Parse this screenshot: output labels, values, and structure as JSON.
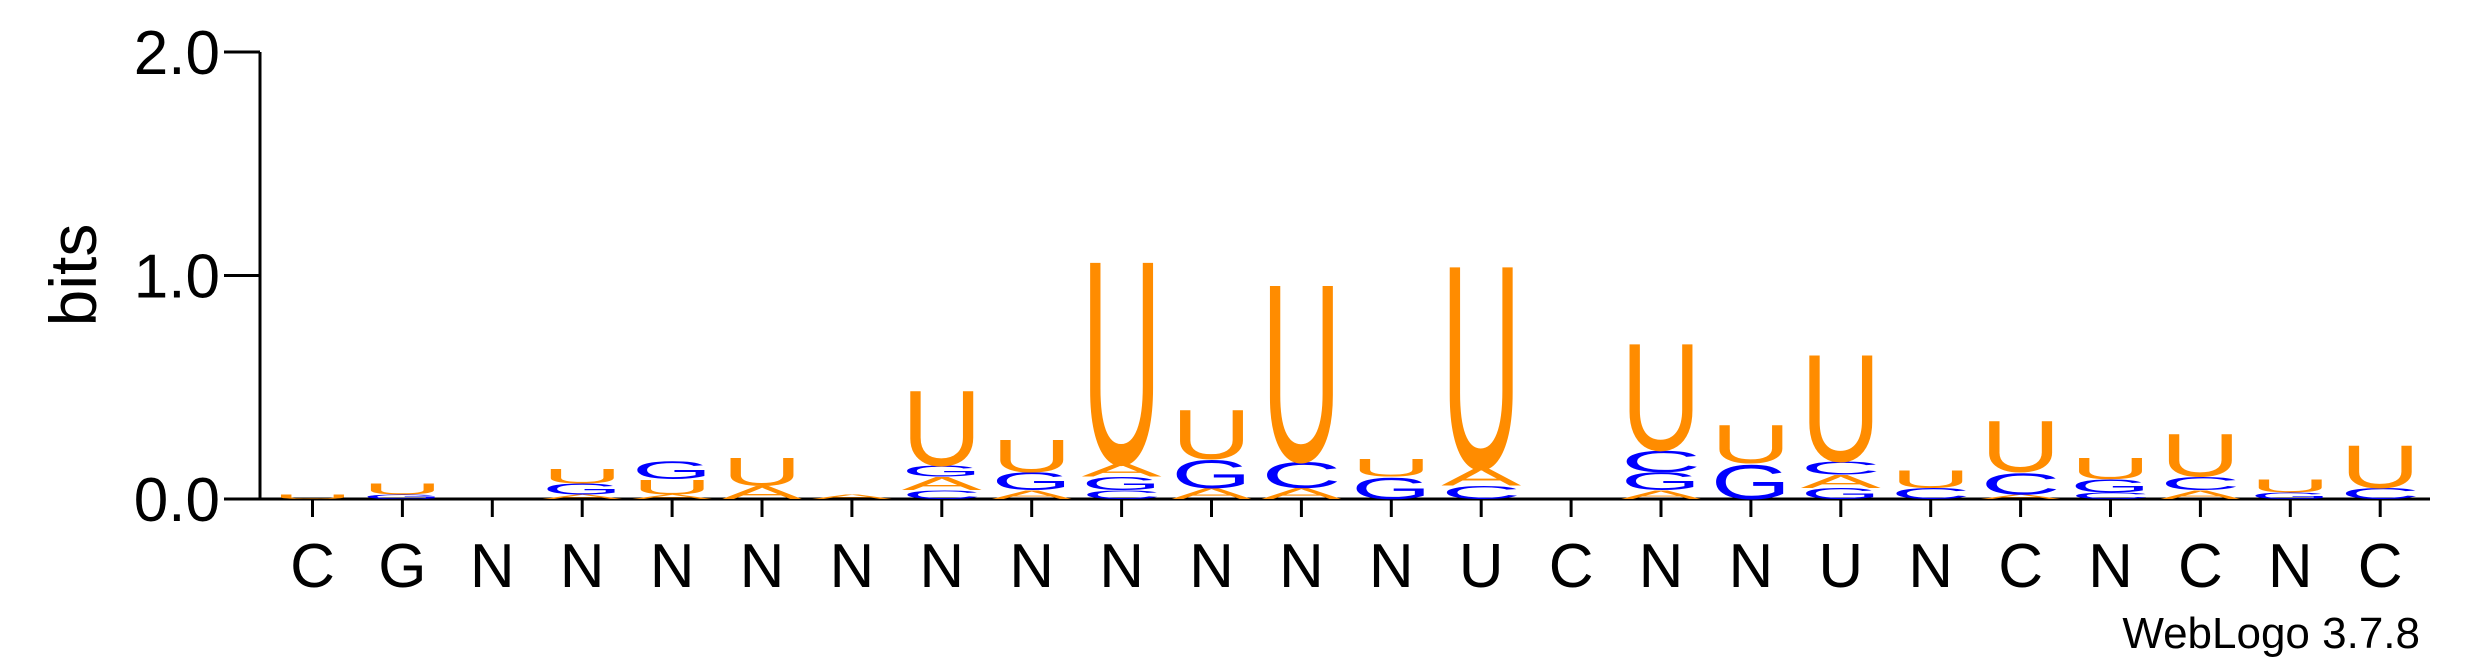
{
  "chart_data": {
    "type": "logo",
    "ylabel": "bits",
    "watermark": "WebLogo 3.7.8",
    "categories": [
      "C",
      "G",
      "N",
      "N",
      "N",
      "N",
      "N",
      "N",
      "N",
      "N",
      "N",
      "N",
      "N",
      "U",
      "C",
      "N",
      "N",
      "U",
      "N",
      "C",
      "N",
      "C",
      "N",
      "C"
    ],
    "colors": {
      "A": "#ff8c00",
      "U": "#ff8c00",
      "C": "#0000ff",
      "G": "#0000ff"
    },
    "ylim": [
      0,
      2
    ],
    "yticks": [
      {
        "value": 0,
        "label": "0.0"
      },
      {
        "value": 1,
        "label": "1.0"
      },
      {
        "value": 2,
        "label": "2.0"
      }
    ],
    "stacks": [
      [
        {
          "letter": "U",
          "value": 0.02
        }
      ],
      [
        {
          "letter": "G",
          "value": 0.02
        },
        {
          "letter": "U",
          "value": 0.05
        }
      ],
      [],
      [
        {
          "letter": "A",
          "value": 0.02
        },
        {
          "letter": "G",
          "value": 0.05
        },
        {
          "letter": "U",
          "value": 0.07
        }
      ],
      [
        {
          "letter": "A",
          "value": 0.02
        },
        {
          "letter": "U",
          "value": 0.07
        },
        {
          "letter": "G",
          "value": 0.08
        }
      ],
      [
        {
          "letter": "A",
          "value": 0.06
        },
        {
          "letter": "U",
          "value": 0.13
        }
      ],
      [
        {
          "letter": "A",
          "value": 0.02
        }
      ],
      [
        {
          "letter": "C",
          "value": 0.04
        },
        {
          "letter": "A",
          "value": 0.06
        },
        {
          "letter": "G",
          "value": 0.05
        },
        {
          "letter": "U",
          "value": 0.35
        }
      ],
      [
        {
          "letter": "A",
          "value": 0.04
        },
        {
          "letter": "G",
          "value": 0.08
        },
        {
          "letter": "U",
          "value": 0.15
        }
      ],
      [
        {
          "letter": "C",
          "value": 0.04
        },
        {
          "letter": "G",
          "value": 0.06
        },
        {
          "letter": "A",
          "value": 0.06
        },
        {
          "letter": "U",
          "value": 0.95
        }
      ],
      [
        {
          "letter": "A",
          "value": 0.05
        },
        {
          "letter": "G",
          "value": 0.13
        },
        {
          "letter": "U",
          "value": 0.23
        }
      ],
      [
        {
          "letter": "A",
          "value": 0.05
        },
        {
          "letter": "C",
          "value": 0.12
        },
        {
          "letter": "U",
          "value": 0.83
        }
      ],
      [
        {
          "letter": "G",
          "value": 0.1
        },
        {
          "letter": "U",
          "value": 0.08
        }
      ],
      [
        {
          "letter": "C",
          "value": 0.06
        },
        {
          "letter": "A",
          "value": 0.08
        },
        {
          "letter": "U",
          "value": 0.95
        }
      ],
      [],
      [
        {
          "letter": "A",
          "value": 0.04
        },
        {
          "letter": "G",
          "value": 0.08
        },
        {
          "letter": "C",
          "value": 0.1
        },
        {
          "letter": "U",
          "value": 0.5
        }
      ],
      [
        {
          "letter": "G",
          "value": 0.16
        },
        {
          "letter": "U",
          "value": 0.18
        }
      ],
      [
        {
          "letter": "G",
          "value": 0.05
        },
        {
          "letter": "A",
          "value": 0.06
        },
        {
          "letter": "C",
          "value": 0.06
        },
        {
          "letter": "U",
          "value": 0.5
        }
      ],
      [
        {
          "letter": "C",
          "value": 0.05
        },
        {
          "letter": "U",
          "value": 0.08
        }
      ],
      [
        {
          "letter": "A",
          "value": 0.02
        },
        {
          "letter": "C",
          "value": 0.1
        },
        {
          "letter": "U",
          "value": 0.24
        }
      ],
      [
        {
          "letter": "C",
          "value": 0.03
        },
        {
          "letter": "G",
          "value": 0.06
        },
        {
          "letter": "U",
          "value": 0.1
        }
      ],
      [
        {
          "letter": "A",
          "value": 0.04
        },
        {
          "letter": "C",
          "value": 0.06
        },
        {
          "letter": "U",
          "value": 0.2
        }
      ],
      [
        {
          "letter": "G",
          "value": 0.03
        },
        {
          "letter": "U",
          "value": 0.06
        }
      ],
      [
        {
          "letter": "C",
          "value": 0.05
        },
        {
          "letter": "U",
          "value": 0.2
        }
      ]
    ]
  }
}
